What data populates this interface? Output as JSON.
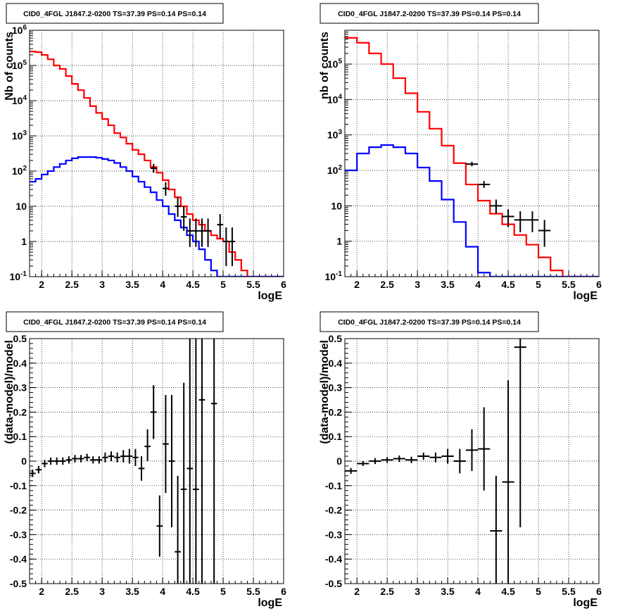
{
  "chart_data": [
    {
      "type": "step",
      "panel": "top-left",
      "title": "CID0_4FGL J1847.2-0200 TS=37.39 PS=0.14 PS=0.14",
      "xlabel": "logE",
      "ylabel": "Nb of counts",
      "xlim": [
        1.8,
        6
      ],
      "ylim": [
        0.1,
        1000000
      ],
      "yscale": "log",
      "xticks": [
        "2",
        "2.5",
        "3",
        "3.5",
        "4",
        "4.5",
        "5",
        "5.5",
        "6"
      ],
      "yticks": [
        "10^-1",
        "1",
        "10",
        "10^2",
        "10^3",
        "10^4",
        "10^5",
        "10^6"
      ],
      "grid": true,
      "bin_edges": [
        1.8,
        1.9,
        2.0,
        2.1,
        2.2,
        2.3,
        2.4,
        2.5,
        2.6,
        2.7,
        2.8,
        2.9,
        3.0,
        3.1,
        3.2,
        3.3,
        3.4,
        3.5,
        3.6,
        3.7,
        3.8,
        3.9,
        4.0,
        4.1,
        4.2,
        4.3,
        4.4,
        4.5,
        4.6,
        4.7,
        4.8,
        4.9,
        5.0,
        5.1,
        5.2,
        5.3,
        5.4,
        5.5,
        5.6,
        5.7,
        5.8,
        5.9,
        6.0
      ],
      "series": [
        {
          "color": "#ff0000",
          "values": [
            250000,
            240000,
            200000,
            150000,
            100000,
            80000,
            50000,
            30000,
            20000,
            12000,
            7000,
            4500,
            3000,
            2000,
            1200,
            900,
            600,
            400,
            300,
            200,
            130,
            90,
            55,
            30,
            18,
            10,
            6,
            4,
            3,
            2,
            1.5,
            1.2,
            1.0,
            0.5,
            0.3,
            0.15,
            0.1,
            0.1,
            0.1,
            0.1,
            0.1,
            0.1
          ]
        },
        {
          "color": "#0000ff",
          "values": [
            50,
            60,
            80,
            100,
            130,
            160,
            200,
            230,
            250,
            250,
            250,
            240,
            220,
            200,
            170,
            130,
            100,
            70,
            50,
            35,
            25,
            15,
            10,
            6,
            4,
            2.5,
            1.5,
            1,
            0.6,
            0.3,
            0.15,
            0.1,
            0.1,
            0.1,
            0.1,
            0.1,
            0.1,
            0.1,
            0.1,
            0.1,
            0.1,
            0.1
          ]
        }
      ],
      "points": [
        {
          "x": 3.85,
          "xerr": 0.05,
          "y": 120,
          "ylo": 90,
          "yhi": 160
        },
        {
          "x": 4.05,
          "xerr": 0.05,
          "y": 32,
          "ylo": 20,
          "yhi": 48
        },
        {
          "x": 4.25,
          "xerr": 0.05,
          "y": 10,
          "ylo": 5,
          "yhi": 18
        },
        {
          "x": 4.35,
          "xerr": 0.05,
          "y": 5,
          "ylo": 2,
          "yhi": 10
        },
        {
          "x": 4.45,
          "xerr": 0.05,
          "y": 2,
          "ylo": 0.7,
          "yhi": 4.5
        },
        {
          "x": 4.55,
          "xerr": 0.05,
          "y": 2,
          "ylo": 0.7,
          "yhi": 4.5
        },
        {
          "x": 4.65,
          "xerr": 0.05,
          "y": 2,
          "ylo": 0.7,
          "yhi": 4.5
        },
        {
          "x": 4.75,
          "xerr": 0.05,
          "y": 2,
          "ylo": 0.7,
          "yhi": 4.5
        },
        {
          "x": 4.95,
          "xerr": 0.05,
          "y": 3,
          "ylo": 1.2,
          "yhi": 6
        },
        {
          "x": 5.05,
          "xerr": 0.05,
          "y": 1,
          "ylo": 0.2,
          "yhi": 2.5
        },
        {
          "x": 5.15,
          "xerr": 0.05,
          "y": 1,
          "ylo": 0.2,
          "yhi": 2.5
        }
      ]
    },
    {
      "type": "step",
      "panel": "top-right",
      "title": "CID0_4FGL J1847.2-0200 TS=37.39 PS=0.14 PS=0.14",
      "xlabel": "logE",
      "ylabel": "nb of counts",
      "xlim": [
        1.8,
        6
      ],
      "ylim": [
        0.1,
        900000
      ],
      "yscale": "log",
      "xticks": [
        "2",
        "2.5",
        "3",
        "3.5",
        "4",
        "4.5",
        "5",
        "5.5",
        "6"
      ],
      "yticks": [
        "10^-1",
        "1",
        "10",
        "10^2",
        "10^3",
        "10^4",
        "10^5"
      ],
      "grid": true,
      "bin_edges": [
        1.8,
        2.0,
        2.2,
        2.4,
        2.6,
        2.8,
        3.0,
        3.2,
        3.4,
        3.6,
        3.8,
        4.0,
        4.2,
        4.4,
        4.6,
        4.8,
        5.0,
        5.2,
        5.4,
        5.6,
        5.8,
        6.0
      ],
      "series": [
        {
          "color": "#ff0000",
          "values": [
            550000,
            400000,
            200000,
            100000,
            40000,
            15000,
            4500,
            1500,
            500,
            160,
            40,
            14,
            6,
            3,
            1.5,
            0.8,
            0.35,
            0.15,
            0.1,
            0.1,
            0.1
          ]
        },
        {
          "color": "#0000ff",
          "values": [
            100,
            300,
            450,
            520,
            450,
            300,
            120,
            50,
            15,
            3.5,
            0.7,
            0.13,
            0.1,
            0.1,
            0.1,
            0.1,
            0.1,
            0.1,
            0.1,
            0.1,
            0.1
          ]
        }
      ],
      "points": [
        {
          "x": 3.9,
          "xerr": 0.1,
          "y": 150,
          "ylo": 130,
          "yhi": 175
        },
        {
          "x": 4.1,
          "xerr": 0.1,
          "y": 40,
          "ylo": 32,
          "yhi": 50
        },
        {
          "x": 4.3,
          "xerr": 0.1,
          "y": 10,
          "ylo": 6,
          "yhi": 15
        },
        {
          "x": 4.5,
          "xerr": 0.1,
          "y": 5,
          "ylo": 2.5,
          "yhi": 8
        },
        {
          "x": 4.7,
          "xerr": 0.1,
          "y": 4,
          "ylo": 1.8,
          "yhi": 7
        },
        {
          "x": 4.9,
          "xerr": 0.1,
          "y": 4,
          "ylo": 1.8,
          "yhi": 7
        },
        {
          "x": 5.1,
          "xerr": 0.1,
          "y": 2,
          "ylo": 0.7,
          "yhi": 4
        }
      ]
    },
    {
      "type": "errorbar",
      "panel": "bottom-left",
      "title": "CID0_4FGL J1847.2-0200 TS=37.39 PS=0.14 PS=0.14",
      "xlabel": "logE",
      "ylabel": "(data-model)/model",
      "xlim": [
        1.8,
        6
      ],
      "ylim": [
        -0.5,
        0.5
      ],
      "xticks": [
        "2",
        "2.5",
        "3",
        "3.5",
        "4",
        "4.5",
        "5",
        "5.5",
        "6"
      ],
      "yticks": [
        "-0.5",
        "-0.4",
        "-0.3",
        "-0.2",
        "-0.1",
        "0",
        "0.1",
        "0.2",
        "0.3",
        "0.4",
        "0.5"
      ],
      "grid": true,
      "points": [
        {
          "x": 1.85,
          "xerr": 0.05,
          "y": -0.05,
          "ylo": -0.065,
          "yhi": -0.035
        },
        {
          "x": 1.95,
          "xerr": 0.05,
          "y": -0.035,
          "ylo": -0.05,
          "yhi": -0.02
        },
        {
          "x": 2.05,
          "xerr": 0.05,
          "y": -0.01,
          "ylo": -0.025,
          "yhi": 0.005
        },
        {
          "x": 2.15,
          "xerr": 0.05,
          "y": 0.0,
          "ylo": -0.015,
          "yhi": 0.015
        },
        {
          "x": 2.25,
          "xerr": 0.05,
          "y": 0.0,
          "ylo": -0.015,
          "yhi": 0.015
        },
        {
          "x": 2.35,
          "xerr": 0.05,
          "y": 0.0,
          "ylo": -0.015,
          "yhi": 0.015
        },
        {
          "x": 2.45,
          "xerr": 0.05,
          "y": 0.005,
          "ylo": -0.01,
          "yhi": 0.02
        },
        {
          "x": 2.55,
          "xerr": 0.05,
          "y": 0.01,
          "ylo": -0.005,
          "yhi": 0.025
        },
        {
          "x": 2.65,
          "xerr": 0.05,
          "y": 0.01,
          "ylo": -0.005,
          "yhi": 0.025
        },
        {
          "x": 2.75,
          "xerr": 0.05,
          "y": 0.015,
          "ylo": 0.0,
          "yhi": 0.03
        },
        {
          "x": 2.85,
          "xerr": 0.05,
          "y": 0.005,
          "ylo": -0.01,
          "yhi": 0.02
        },
        {
          "x": 2.95,
          "xerr": 0.05,
          "y": 0.005,
          "ylo": -0.01,
          "yhi": 0.02
        },
        {
          "x": 3.05,
          "xerr": 0.05,
          "y": 0.015,
          "ylo": -0.005,
          "yhi": 0.035
        },
        {
          "x": 3.15,
          "xerr": 0.05,
          "y": 0.02,
          "ylo": 0.0,
          "yhi": 0.04
        },
        {
          "x": 3.25,
          "xerr": 0.05,
          "y": 0.015,
          "ylo": -0.005,
          "yhi": 0.035
        },
        {
          "x": 3.35,
          "xerr": 0.05,
          "y": 0.02,
          "ylo": -0.005,
          "yhi": 0.045
        },
        {
          "x": 3.45,
          "xerr": 0.05,
          "y": 0.02,
          "ylo": -0.01,
          "yhi": 0.05
        },
        {
          "x": 3.55,
          "xerr": 0.05,
          "y": 0.015,
          "ylo": -0.02,
          "yhi": 0.05
        },
        {
          "x": 3.65,
          "xerr": 0.05,
          "y": -0.03,
          "ylo": -0.08,
          "yhi": 0.02
        },
        {
          "x": 3.75,
          "xerr": 0.05,
          "y": 0.06,
          "ylo": 0.0,
          "yhi": 0.13
        },
        {
          "x": 3.85,
          "xerr": 0.05,
          "y": 0.2,
          "ylo": 0.09,
          "yhi": 0.31
        },
        {
          "x": 3.95,
          "xerr": 0.05,
          "y": -0.265,
          "ylo": -0.39,
          "yhi": -0.14
        },
        {
          "x": 4.05,
          "xerr": 0.05,
          "y": 0.07,
          "ylo": -0.13,
          "yhi": 0.27
        },
        {
          "x": 4.15,
          "xerr": 0.05,
          "y": 0.0,
          "ylo": -0.27,
          "yhi": 0.27
        },
        {
          "x": 4.25,
          "xerr": 0.05,
          "y": -0.37,
          "ylo": -0.5,
          "yhi": -0.06
        },
        {
          "x": 4.35,
          "xerr": 0.05,
          "y": -0.115,
          "ylo": -0.5,
          "yhi": 0.32
        },
        {
          "x": 4.45,
          "xerr": 0.05,
          "y": -0.03,
          "ylo": -0.5,
          "yhi": 0.5
        },
        {
          "x": 4.55,
          "xerr": 0.05,
          "y": -0.115,
          "ylo": -0.5,
          "yhi": 0.5
        },
        {
          "x": 4.65,
          "xerr": 0.05,
          "y": 0.25,
          "ylo": -0.5,
          "yhi": 0.5
        },
        {
          "x": 4.85,
          "xerr": 0.05,
          "y": 0.235,
          "ylo": -0.5,
          "yhi": 0.5
        }
      ]
    },
    {
      "type": "errorbar",
      "panel": "bottom-right",
      "title": "CID0_4FGL J1847.2-0200 TS=37.39 PS=0.14 PS=0.14",
      "xlabel": "logE",
      "ylabel": "(data-model)/model",
      "xlim": [
        1.8,
        6
      ],
      "ylim": [
        -0.5,
        0.5
      ],
      "xticks": [
        "2",
        "2.5",
        "3",
        "3.5",
        "4",
        "4.5",
        "5",
        "5.5",
        "6"
      ],
      "yticks": [
        "-0.5",
        "-0.4",
        "-0.3",
        "-0.2",
        "-0.1",
        "0",
        "0.1",
        "0.2",
        "0.3",
        "0.4",
        "0.5"
      ],
      "grid": true,
      "points": [
        {
          "x": 1.9,
          "xerr": 0.1,
          "y": -0.04,
          "ylo": -0.052,
          "yhi": -0.028
        },
        {
          "x": 2.1,
          "xerr": 0.1,
          "y": -0.01,
          "ylo": -0.02,
          "yhi": 0.0
        },
        {
          "x": 2.3,
          "xerr": 0.1,
          "y": 0.0,
          "ylo": -0.012,
          "yhi": 0.012
        },
        {
          "x": 2.5,
          "xerr": 0.1,
          "y": 0.005,
          "ylo": -0.007,
          "yhi": 0.017
        },
        {
          "x": 2.7,
          "xerr": 0.1,
          "y": 0.01,
          "ylo": -0.003,
          "yhi": 0.023
        },
        {
          "x": 2.9,
          "xerr": 0.1,
          "y": 0.005,
          "ylo": -0.008,
          "yhi": 0.018
        },
        {
          "x": 3.1,
          "xerr": 0.1,
          "y": 0.02,
          "ylo": 0.005,
          "yhi": 0.035
        },
        {
          "x": 3.3,
          "xerr": 0.1,
          "y": 0.015,
          "ylo": -0.005,
          "yhi": 0.035
        },
        {
          "x": 3.5,
          "xerr": 0.1,
          "y": 0.02,
          "ylo": -0.01,
          "yhi": 0.05
        },
        {
          "x": 3.7,
          "xerr": 0.1,
          "y": 0.0,
          "ylo": -0.05,
          "yhi": 0.05
        },
        {
          "x": 3.9,
          "xerr": 0.1,
          "y": 0.045,
          "ylo": -0.04,
          "yhi": 0.13
        },
        {
          "x": 4.1,
          "xerr": 0.1,
          "y": 0.05,
          "ylo": -0.12,
          "yhi": 0.22
        },
        {
          "x": 4.3,
          "xerr": 0.1,
          "y": -0.285,
          "ylo": -0.5,
          "yhi": -0.06
        },
        {
          "x": 4.5,
          "xerr": 0.1,
          "y": -0.085,
          "ylo": -0.5,
          "yhi": 0.33
        },
        {
          "x": 4.7,
          "xerr": 0.1,
          "y": 0.465,
          "ylo": -0.27,
          "yhi": 0.5
        }
      ]
    }
  ]
}
